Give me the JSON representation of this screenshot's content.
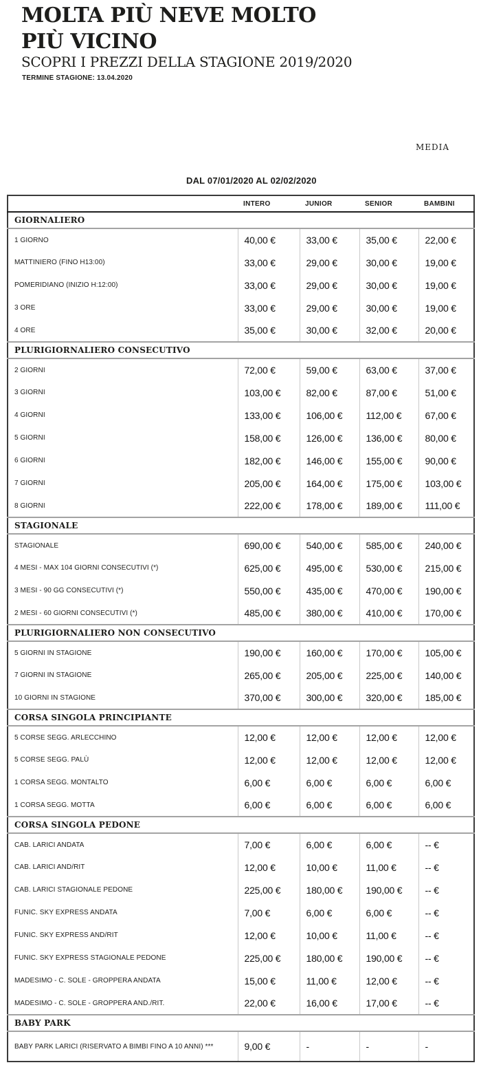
{
  "header": {
    "title": "MOLTA PIÙ NEVE MOLTO PIÙ VICINO",
    "subtitle": "SCOPRI I PREZZI DELLA STAGIONE 2019/2020",
    "season_end": "TERMINE STAGIONE: 13.04.2020",
    "season_tab": "MEDIA",
    "period": "DAL 07/01/2020 AL 02/02/2020"
  },
  "colors": {
    "text": "#1d1d1b",
    "table_border_dark": "#3a3a3a",
    "section_border_gray": "#a3a3a3",
    "column_divider_light": "#c9c9c9"
  },
  "table": {
    "columns": [
      "INTERO",
      "JUNIOR",
      "SENIOR",
      "BAMBINI"
    ],
    "sections": [
      {
        "name": "GIORNALIERO",
        "rows": [
          {
            "label": "1 GIORNO",
            "prices": [
              "40,00 €",
              "33,00 €",
              "35,00 €",
              "22,00 €"
            ]
          },
          {
            "label": "MATTINIERO (FINO H13:00)",
            "prices": [
              "33,00 €",
              "29,00 €",
              "30,00 €",
              "19,00 €"
            ]
          },
          {
            "label": "POMERIDIANO (INIZIO H:12:00)",
            "prices": [
              "33,00 €",
              "29,00 €",
              "30,00 €",
              "19,00 €"
            ]
          },
          {
            "label": "3 ORE",
            "prices": [
              "33,00 €",
              "29,00 €",
              "30,00 €",
              "19,00 €"
            ]
          },
          {
            "label": "4 ORE",
            "prices": [
              "35,00 €",
              "30,00 €",
              "32,00 €",
              "20,00 €"
            ]
          }
        ]
      },
      {
        "name": "PLURIGIORNALIERO CONSECUTIVO",
        "rows": [
          {
            "label": "2 GIORNI",
            "prices": [
              "72,00 €",
              "59,00 €",
              "63,00 €",
              "37,00 €"
            ]
          },
          {
            "label": "3 GIORNI",
            "prices": [
              "103,00 €",
              "82,00 €",
              "87,00 €",
              "51,00 €"
            ]
          },
          {
            "label": "4 GIORNI",
            "prices": [
              "133,00 €",
              "106,00 €",
              "112,00 €",
              "67,00 €"
            ]
          },
          {
            "label": "5 GIORNI",
            "prices": [
              "158,00 €",
              "126,00 €",
              "136,00 €",
              "80,00 €"
            ]
          },
          {
            "label": "6 GIORNI",
            "prices": [
              "182,00 €",
              "146,00 €",
              "155,00 €",
              "90,00 €"
            ]
          },
          {
            "label": "7 GIORNI",
            "prices": [
              "205,00 €",
              "164,00 €",
              "175,00 €",
              "103,00 €"
            ]
          },
          {
            "label": "8 GIORNI",
            "prices": [
              "222,00 €",
              "178,00 €",
              "189,00 €",
              "111,00 €"
            ]
          }
        ]
      },
      {
        "name": "STAGIONALE",
        "rows": [
          {
            "label": "STAGIONALE",
            "prices": [
              "690,00 €",
              "540,00 €",
              "585,00 €",
              "240,00 €"
            ]
          },
          {
            "label": "4 MESI - MAX 104 GIORNI CONSECUTIVI (*)",
            "prices": [
              "625,00 €",
              "495,00 €",
              "530,00 €",
              "215,00 €"
            ]
          },
          {
            "label": "3 MESI - 90 GG CONSECUTIVI (*)",
            "prices": [
              "550,00 €",
              "435,00 €",
              "470,00 €",
              "190,00 €"
            ]
          },
          {
            "label": "2 MESI - 60 GIORNI CONSECUTIVI (*)",
            "prices": [
              "485,00 €",
              "380,00 €",
              "410,00 €",
              "170,00 €"
            ]
          }
        ]
      },
      {
        "name": "PLURIGIORNALIERO NON CONSECUTIVO",
        "rows": [
          {
            "label": "5 GIORNI IN STAGIONE",
            "prices": [
              "190,00 €",
              "160,00 €",
              "170,00 €",
              "105,00 €"
            ]
          },
          {
            "label": "7 GIORNI IN STAGIONE",
            "prices": [
              "265,00 €",
              "205,00 €",
              "225,00 €",
              "140,00 €"
            ]
          },
          {
            "label": "10 GIORNI IN STAGIONE",
            "prices": [
              "370,00 €",
              "300,00 €",
              "320,00 €",
              "185,00 €"
            ]
          }
        ]
      },
      {
        "name": "CORSA SINGOLA PRINCIPIANTE",
        "rows": [
          {
            "label": "5 CORSE SEGG. ARLECCHINO",
            "prices": [
              "12,00 €",
              "12,00 €",
              "12,00 €",
              "12,00 €"
            ]
          },
          {
            "label": "5 CORSE SEGG. PALÙ",
            "prices": [
              "12,00 €",
              "12,00 €",
              "12,00 €",
              "12,00 €"
            ]
          },
          {
            "label": "1 CORSA SEGG. MONTALTO",
            "prices": [
              "6,00 €",
              "6,00 €",
              "6,00 €",
              "6,00 €"
            ]
          },
          {
            "label": "1 CORSA SEGG. MOTTA",
            "prices": [
              "6,00 €",
              "6,00 €",
              "6,00 €",
              "6,00 €"
            ]
          }
        ]
      },
      {
        "name": "CORSA SINGOLA PEDONE",
        "rows": [
          {
            "label": "CAB. LARICI ANDATA",
            "prices": [
              "7,00 €",
              "6,00 €",
              "6,00 €",
              "-- €"
            ]
          },
          {
            "label": "CAB. LARICI AND/RIT",
            "prices": [
              "12,00 €",
              "10,00 €",
              "11,00 €",
              "-- €"
            ]
          },
          {
            "label": "CAB. LARICI STAGIONALE PEDONE",
            "prices": [
              "225,00 €",
              "180,00 €",
              "190,00 €",
              "-- €"
            ]
          },
          {
            "label": "FUNIC. SKY EXPRESS ANDATA",
            "prices": [
              "7,00 €",
              "6,00 €",
              "6,00 €",
              "-- €"
            ]
          },
          {
            "label": "FUNIC. SKY EXPRESS AND/RIT",
            "prices": [
              "12,00 €",
              "10,00 €",
              "11,00 €",
              "-- €"
            ]
          },
          {
            "label": "FUNIC. SKY EXPRESS STAGIONALE PEDONE",
            "prices": [
              "225,00 €",
              "180,00 €",
              "190,00 €",
              "-- €"
            ]
          },
          {
            "label": "MADESIMO - C. SOLE - GROPPERA ANDATA",
            "prices": [
              "15,00 €",
              "11,00 €",
              "12,00 €",
              "-- €"
            ]
          },
          {
            "label": "MADESIMO - C. SOLE - GROPPERA AND./RIT.",
            "prices": [
              "22,00 €",
              "16,00 €",
              "17,00 €",
              "-- €"
            ]
          }
        ]
      },
      {
        "name": "BABY PARK",
        "rows": [
          {
            "label": "BABY PARK LARICI (RISERVATO A BIMBI FINO A 10 ANNI) ***",
            "prices": [
              "9,00 €",
              "-",
              "-",
              "-"
            ]
          }
        ]
      }
    ]
  }
}
